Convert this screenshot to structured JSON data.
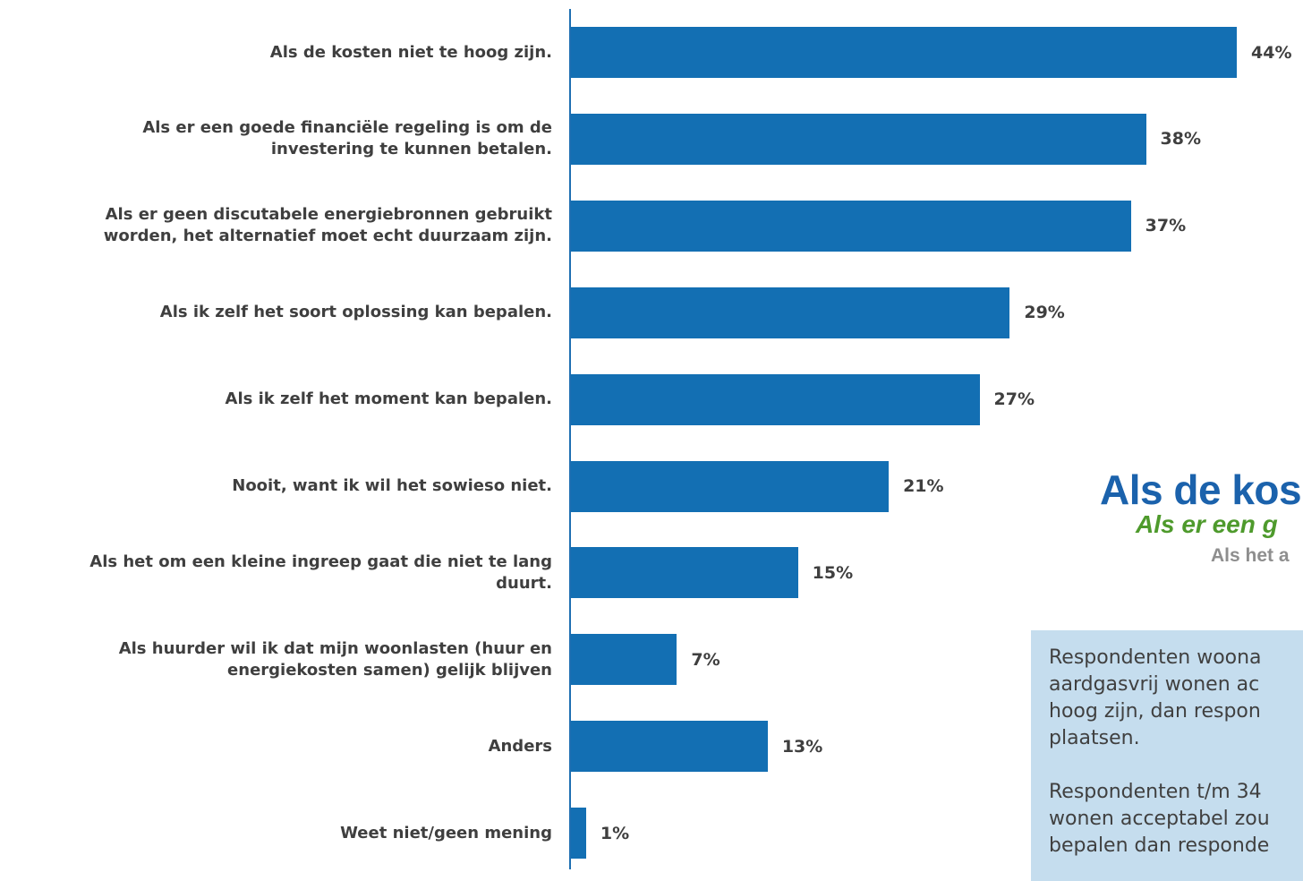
{
  "chart_data": {
    "type": "bar",
    "orientation": "horizontal",
    "categories": [
      "Als de kosten niet te hoog zijn.",
      "Als er een goede financiële regeling is om de\ninvestering te kunnen betalen.",
      "Als er geen discutabele energiebronnen gebruikt\nworden, het alternatief moet echt duurzaam zijn.",
      "Als ik zelf het soort oplossing kan bepalen.",
      "Als ik zelf het moment kan bepalen.",
      "Nooit, want ik wil het sowieso niet.",
      "Als het om een kleine ingreep gaat die niet te lang\nduurt.",
      "Als huurder wil ik dat mijn woonlasten (huur en\nenergiekosten samen) gelijk blijven",
      "Anders",
      "Weet niet/geen mening"
    ],
    "values": [
      44,
      38,
      37,
      29,
      27,
      21,
      15,
      7,
      13,
      1
    ],
    "value_labels": [
      "44%",
      "38%",
      "37%",
      "29%",
      "27%",
      "21%",
      "15%",
      "7%",
      "13%",
      "1%"
    ],
    "xlim": [
      0,
      44
    ],
    "grid": false,
    "bar_color": "#136fb3"
  },
  "headlines": {
    "main": "Als de kos",
    "second": "Als er een g",
    "third": "Als het a"
  },
  "info_box": {
    "paragraph1": "Respondenten woona\naardgasvrij wonen ac\nhoog zijn, dan respon\nplaatsen.",
    "paragraph2": "Respondenten t/m 34\nwonen acceptabel zou\nbepalen dan responde"
  }
}
